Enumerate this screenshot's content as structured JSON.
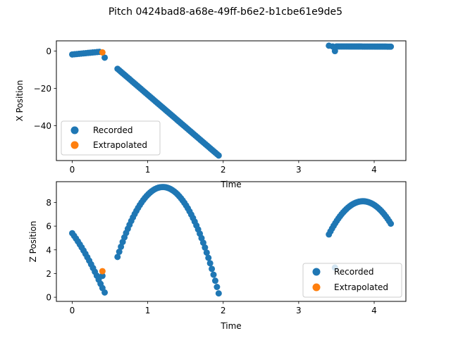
{
  "figure": {
    "title": "Pitch 0424bad8-a68e-49ff-b6e2-b1cbe61e9de5"
  },
  "chart_data": [
    {
      "type": "scatter",
      "title": "",
      "xlabel": "Time",
      "ylabel": "X Position",
      "xlim": [
        -0.21,
        4.42
      ],
      "ylim": [
        -58.7,
        5.5
      ],
      "xticks": [
        0,
        1,
        2,
        3,
        4
      ],
      "xtick_labels": [
        "0",
        "1",
        "2",
        "3",
        "4"
      ],
      "yticks": [
        0,
        -20,
        -40
      ],
      "ytick_labels": [
        "0",
        "−20",
        "−40"
      ],
      "grid": false,
      "legend": "lower-left",
      "series": [
        {
          "name": "Recorded",
          "color": "#1f77b4",
          "segments": [
            {
              "x_start": 0.0,
              "x_end": 0.36,
              "y_start": -1.8,
              "y_end": -0.4,
              "count": 13
            },
            {
              "x_start": 0.43,
              "x_end": 0.43,
              "y_start": -3.5,
              "y_end": -3.5,
              "count": 1
            },
            {
              "x_start": 0.6,
              "x_end": 1.94,
              "y_start": -9.5,
              "y_end": -56.0,
              "count": 62
            },
            {
              "x_start": 3.4,
              "x_end": 3.45,
              "y_start": 2.9,
              "y_end": 2.5,
              "count": 2
            },
            {
              "x_start": 3.48,
              "x_end": 3.48,
              "y_start": 0.0,
              "y_end": 0.0,
              "count": 1
            },
            {
              "x_start": 3.5,
              "x_end": 4.22,
              "y_start": 2.5,
              "y_end": 2.4,
              "count": 34
            }
          ]
        },
        {
          "name": "Extrapolated",
          "color": "#ff7f0e",
          "points": [
            [
              0.4,
              -0.7
            ]
          ]
        }
      ]
    },
    {
      "type": "scatter",
      "title": "",
      "xlabel": "Time",
      "ylabel": "Z Position",
      "xlim": [
        -0.21,
        4.42
      ],
      "ylim": [
        -0.35,
        9.75
      ],
      "xticks": [
        0,
        1,
        2,
        3,
        4
      ],
      "xtick_labels": [
        "0",
        "1",
        "2",
        "3",
        "4"
      ],
      "yticks": [
        0,
        2,
        4,
        6,
        8
      ],
      "ytick_labels": [
        "0",
        "2",
        "4",
        "6",
        "8"
      ],
      "grid": false,
      "legend": "lower-right",
      "series": [
        {
          "name": "Recorded",
          "color": "#1f77b4",
          "arcs": [
            {
              "x_start": 0.0,
              "x_end": 0.4,
              "peak_x": -0.6,
              "peak_y": 8.0,
              "y_start": 5.4,
              "count": 17
            },
            {
              "x_start": 0.4,
              "x_end": 0.4,
              "peak_x": 0.4,
              "peak_y": 1.8,
              "y_start": 1.8,
              "count": 1
            },
            {
              "x_start": 0.43,
              "x_end": 0.43,
              "peak_x": 0.43,
              "peak_y": 0.4,
              "y_start": 0.4,
              "count": 1
            },
            {
              "x_start": 0.6,
              "x_end": 1.94,
              "peak_x": 1.2,
              "peak_y": 9.3,
              "y_start": 3.4,
              "count": 60
            },
            {
              "x_start": 3.4,
              "x_end": 4.22,
              "peak_x": 3.85,
              "peak_y": 8.1,
              "y_start": 5.3,
              "count": 40
            },
            {
              "x_start": 3.48,
              "x_end": 3.48,
              "peak_x": 3.48,
              "peak_y": 2.5,
              "y_start": 2.5,
              "count": 1
            }
          ]
        },
        {
          "name": "Extrapolated",
          "color": "#ff7f0e",
          "points": [
            [
              0.4,
              2.2
            ]
          ]
        }
      ]
    }
  ]
}
